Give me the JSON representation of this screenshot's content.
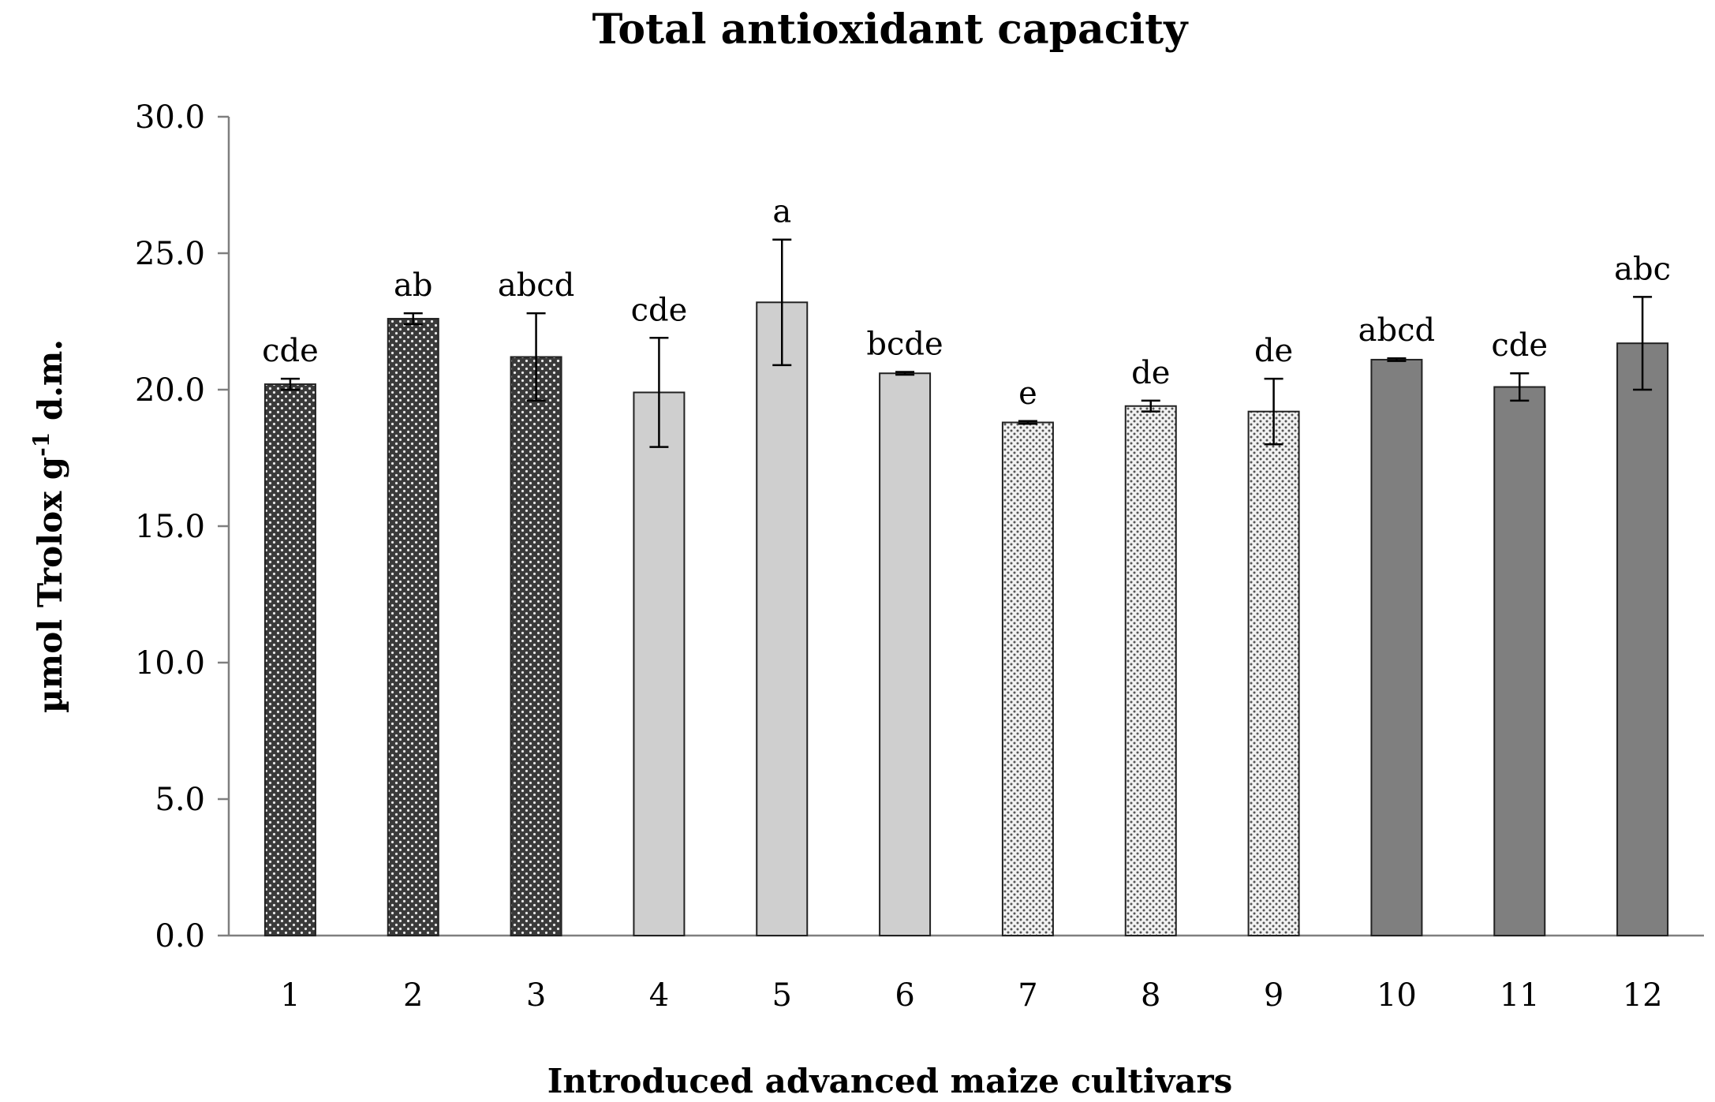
{
  "chart_data": {
    "type": "bar",
    "title": "Total antioxidant capacity",
    "xlabel": "Introduced advanced maize cultivars",
    "ylabel": {
      "prefix": "µmol Trolox g",
      "sup": "-1",
      "suffix": " d.m."
    },
    "ylim": [
      0,
      30
    ],
    "yticks": [
      "0.0",
      "5.0",
      "10.0",
      "15.0",
      "20.0",
      "25.0",
      "30.0"
    ],
    "categories": [
      "1",
      "2",
      "3",
      "4",
      "5",
      "6",
      "7",
      "8",
      "9",
      "10",
      "11",
      "12"
    ],
    "values": [
      20.2,
      22.6,
      21.2,
      19.9,
      23.2,
      20.6,
      18.8,
      19.4,
      19.2,
      21.1,
      20.1,
      21.7
    ],
    "errors": [
      0.2,
      0.2,
      1.6,
      2.0,
      2.3,
      0.05,
      0.05,
      0.2,
      1.2,
      0.05,
      0.5,
      1.7
    ],
    "letters": [
      "cde",
      "ab",
      "abcd",
      "cde",
      "a",
      "bcde",
      "e",
      "de",
      "de",
      "abcd",
      "cde",
      "abc"
    ],
    "groups": [
      1,
      1,
      1,
      2,
      2,
      2,
      3,
      3,
      3,
      4,
      4,
      4
    ],
    "group_colors": {
      "1": "#3a3a3a",
      "2": "#cfcfcf",
      "3": "#b9b9b9",
      "4": "#7f7f7f"
    },
    "grid": false,
    "legend": "none"
  }
}
